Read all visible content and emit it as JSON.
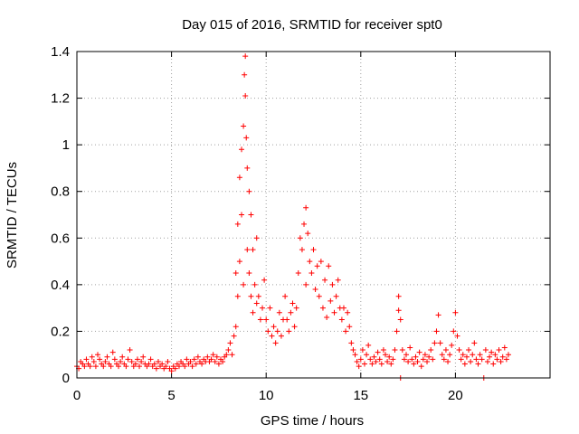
{
  "chart_data": {
    "type": "scatter",
    "title": "Day 015 of 2016, SRMTID for receiver spt0",
    "xlabel": "GPS time / hours",
    "ylabel": "SRMTID / TECUs",
    "xlim": [
      0,
      25
    ],
    "ylim": [
      0,
      1.4
    ],
    "xticks": [
      0,
      5,
      10,
      15,
      20
    ],
    "xtick_labels": [
      "0",
      "5",
      "10",
      "15",
      "20"
    ],
    "yticks": [
      0,
      0.2,
      0.4,
      0.6,
      0.8,
      1,
      1.2,
      1.4
    ],
    "ytick_labels": [
      "0",
      "0.2",
      "0.4",
      "0.6",
      "0.8",
      "1",
      "1.2",
      "1.4"
    ],
    "grid": true,
    "marker": "+",
    "color": "#ff0000",
    "series": [
      {
        "name": "SRMTID",
        "points": [
          [
            0.0,
            0.05
          ],
          [
            0.1,
            0.04
          ],
          [
            0.2,
            0.07
          ],
          [
            0.3,
            0.06
          ],
          [
            0.4,
            0.05
          ],
          [
            0.5,
            0.08
          ],
          [
            0.6,
            0.06
          ],
          [
            0.7,
            0.05
          ],
          [
            0.8,
            0.09
          ],
          [
            0.9,
            0.07
          ],
          [
            1.0,
            0.05
          ],
          [
            1.1,
            0.1
          ],
          [
            1.2,
            0.08
          ],
          [
            1.3,
            0.06
          ],
          [
            1.4,
            0.05
          ],
          [
            1.5,
            0.07
          ],
          [
            1.6,
            0.09
          ],
          [
            1.7,
            0.06
          ],
          [
            1.8,
            0.05
          ],
          [
            1.9,
            0.11
          ],
          [
            2.0,
            0.08
          ],
          [
            2.1,
            0.06
          ],
          [
            2.2,
            0.05
          ],
          [
            2.3,
            0.07
          ],
          [
            2.4,
            0.09
          ],
          [
            2.5,
            0.06
          ],
          [
            2.6,
            0.05
          ],
          [
            2.7,
            0.08
          ],
          [
            2.8,
            0.12
          ],
          [
            2.9,
            0.07
          ],
          [
            3.0,
            0.05
          ],
          [
            3.1,
            0.06
          ],
          [
            3.2,
            0.08
          ],
          [
            3.3,
            0.05
          ],
          [
            3.4,
            0.07
          ],
          [
            3.5,
            0.09
          ],
          [
            3.6,
            0.06
          ],
          [
            3.7,
            0.05
          ],
          [
            3.8,
            0.06
          ],
          [
            3.9,
            0.08
          ],
          [
            4.0,
            0.05
          ],
          [
            4.1,
            0.06
          ],
          [
            4.2,
            0.04
          ],
          [
            4.3,
            0.07
          ],
          [
            4.4,
            0.05
          ],
          [
            4.5,
            0.06
          ],
          [
            4.6,
            0.04
          ],
          [
            4.7,
            0.05
          ],
          [
            4.8,
            0.07
          ],
          [
            4.9,
            0.04
          ],
          [
            5.0,
            0.03
          ],
          [
            5.1,
            0.05
          ],
          [
            5.2,
            0.04
          ],
          [
            5.3,
            0.06
          ],
          [
            5.4,
            0.05
          ],
          [
            5.5,
            0.07
          ],
          [
            5.6,
            0.06
          ],
          [
            5.7,
            0.05
          ],
          [
            5.8,
            0.08
          ],
          [
            5.9,
            0.06
          ],
          [
            6.0,
            0.07
          ],
          [
            6.1,
            0.05
          ],
          [
            6.2,
            0.08
          ],
          [
            6.3,
            0.06
          ],
          [
            6.4,
            0.09
          ],
          [
            6.5,
            0.07
          ],
          [
            6.6,
            0.06
          ],
          [
            6.7,
            0.08
          ],
          [
            6.8,
            0.07
          ],
          [
            6.9,
            0.09
          ],
          [
            7.0,
            0.07
          ],
          [
            7.1,
            0.08
          ],
          [
            7.2,
            0.1
          ],
          [
            7.3,
            0.07
          ],
          [
            7.4,
            0.09
          ],
          [
            7.5,
            0.06
          ],
          [
            7.6,
            0.08
          ],
          [
            7.7,
            0.07
          ],
          [
            7.8,
            0.09
          ],
          [
            7.9,
            0.1
          ],
          [
            8.0,
            0.12
          ],
          [
            8.1,
            0.15
          ],
          [
            8.2,
            0.1
          ],
          [
            8.3,
            0.18
          ],
          [
            8.4,
            0.22
          ],
          [
            8.4,
            0.45
          ],
          [
            8.5,
            0.66
          ],
          [
            8.5,
            0.35
          ],
          [
            8.6,
            0.86
          ],
          [
            8.6,
            0.5
          ],
          [
            8.7,
            0.98
          ],
          [
            8.7,
            0.7
          ],
          [
            8.8,
            1.08
          ],
          [
            8.8,
            0.4
          ],
          [
            8.85,
            1.3
          ],
          [
            8.9,
            1.38
          ],
          [
            8.9,
            1.21
          ],
          [
            8.95,
            1.03
          ],
          [
            9.0,
            0.9
          ],
          [
            9.0,
            0.55
          ],
          [
            9.1,
            0.8
          ],
          [
            9.1,
            0.45
          ],
          [
            9.2,
            0.7
          ],
          [
            9.2,
            0.35
          ],
          [
            9.3,
            0.55
          ],
          [
            9.3,
            0.28
          ],
          [
            9.4,
            0.4
          ],
          [
            9.5,
            0.6
          ],
          [
            9.5,
            0.32
          ],
          [
            9.6,
            0.35
          ],
          [
            9.7,
            0.25
          ],
          [
            9.8,
            0.3
          ],
          [
            9.9,
            0.42
          ],
          [
            10.0,
            0.25
          ],
          [
            10.1,
            0.2
          ],
          [
            10.2,
            0.3
          ],
          [
            10.3,
            0.18
          ],
          [
            10.4,
            0.22
          ],
          [
            10.5,
            0.15
          ],
          [
            10.6,
            0.2
          ],
          [
            10.7,
            0.28
          ],
          [
            10.8,
            0.18
          ],
          [
            10.9,
            0.25
          ],
          [
            11.0,
            0.35
          ],
          [
            11.1,
            0.25
          ],
          [
            11.2,
            0.2
          ],
          [
            11.3,
            0.28
          ],
          [
            11.4,
            0.32
          ],
          [
            11.5,
            0.22
          ],
          [
            11.6,
            0.3
          ],
          [
            11.7,
            0.45
          ],
          [
            11.8,
            0.6
          ],
          [
            11.9,
            0.55
          ],
          [
            12.0,
            0.66
          ],
          [
            12.1,
            0.73
          ],
          [
            12.1,
            0.4
          ],
          [
            12.2,
            0.62
          ],
          [
            12.3,
            0.5
          ],
          [
            12.4,
            0.45
          ],
          [
            12.5,
            0.55
          ],
          [
            12.6,
            0.38
          ],
          [
            12.7,
            0.48
          ],
          [
            12.8,
            0.35
          ],
          [
            12.9,
            0.5
          ],
          [
            13.0,
            0.3
          ],
          [
            13.1,
            0.42
          ],
          [
            13.2,
            0.26
          ],
          [
            13.3,
            0.48
          ],
          [
            13.4,
            0.33
          ],
          [
            13.5,
            0.4
          ],
          [
            13.6,
            0.28
          ],
          [
            13.7,
            0.35
          ],
          [
            13.8,
            0.42
          ],
          [
            13.9,
            0.3
          ],
          [
            14.0,
            0.25
          ],
          [
            14.1,
            0.3
          ],
          [
            14.2,
            0.2
          ],
          [
            14.3,
            0.28
          ],
          [
            14.4,
            0.22
          ],
          [
            14.5,
            0.15
          ],
          [
            14.6,
            0.12
          ],
          [
            14.7,
            0.1
          ],
          [
            14.8,
            0.07
          ],
          [
            14.9,
            0.05
          ],
          [
            15.0,
            0.08
          ],
          [
            15.1,
            0.12
          ],
          [
            15.2,
            0.06
          ],
          [
            15.3,
            0.1
          ],
          [
            15.4,
            0.14
          ],
          [
            15.5,
            0.08
          ],
          [
            15.6,
            0.06
          ],
          [
            15.7,
            0.09
          ],
          [
            15.8,
            0.07
          ],
          [
            15.9,
            0.11
          ],
          [
            16.0,
            0.08
          ],
          [
            16.1,
            0.06
          ],
          [
            16.2,
            0.12
          ],
          [
            16.3,
            0.1
          ],
          [
            16.4,
            0.07
          ],
          [
            16.5,
            0.09
          ],
          [
            16.6,
            0.06
          ],
          [
            16.7,
            0.08
          ],
          [
            16.8,
            0.12
          ],
          [
            16.9,
            0.2
          ],
          [
            17.0,
            0.35
          ],
          [
            17.0,
            0.29
          ],
          [
            17.1,
            0.25
          ],
          [
            17.1,
            0.0
          ],
          [
            17.2,
            0.12
          ],
          [
            17.3,
            0.08
          ],
          [
            17.4,
            0.1
          ],
          [
            17.5,
            0.07
          ],
          [
            17.6,
            0.13
          ],
          [
            17.7,
            0.08
          ],
          [
            17.8,
            0.06
          ],
          [
            17.9,
            0.09
          ],
          [
            18.0,
            0.07
          ],
          [
            18.1,
            0.11
          ],
          [
            18.2,
            0.05
          ],
          [
            18.3,
            0.08
          ],
          [
            18.4,
            0.1
          ],
          [
            18.5,
            0.07
          ],
          [
            18.6,
            0.09
          ],
          [
            18.7,
            0.12
          ],
          [
            18.8,
            0.08
          ],
          [
            18.9,
            0.15
          ],
          [
            19.0,
            0.2
          ],
          [
            19.1,
            0.27
          ],
          [
            19.2,
            0.15
          ],
          [
            19.3,
            0.1
          ],
          [
            19.4,
            0.08
          ],
          [
            19.5,
            0.12
          ],
          [
            19.6,
            0.07
          ],
          [
            19.7,
            0.1
          ],
          [
            19.8,
            0.14
          ],
          [
            19.9,
            0.2
          ],
          [
            20.0,
            0.28
          ],
          [
            20.1,
            0.18
          ],
          [
            20.2,
            0.12
          ],
          [
            20.3,
            0.08
          ],
          [
            20.4,
            0.1
          ],
          [
            20.5,
            0.06
          ],
          [
            20.6,
            0.09
          ],
          [
            20.7,
            0.12
          ],
          [
            20.8,
            0.07
          ],
          [
            20.9,
            0.1
          ],
          [
            21.0,
            0.15
          ],
          [
            21.1,
            0.08
          ],
          [
            21.2,
            0.06
          ],
          [
            21.3,
            0.1
          ],
          [
            21.4,
            0.08
          ],
          [
            21.5,
            0.0
          ],
          [
            21.6,
            0.12
          ],
          [
            21.7,
            0.07
          ],
          [
            21.8,
            0.09
          ],
          [
            21.9,
            0.11
          ],
          [
            22.0,
            0.06
          ],
          [
            22.1,
            0.1
          ],
          [
            22.2,
            0.08
          ],
          [
            22.3,
            0.12
          ],
          [
            22.4,
            0.07
          ],
          [
            22.5,
            0.09
          ],
          [
            22.6,
            0.13
          ],
          [
            22.7,
            0.08
          ],
          [
            22.8,
            0.1
          ]
        ]
      }
    ]
  }
}
